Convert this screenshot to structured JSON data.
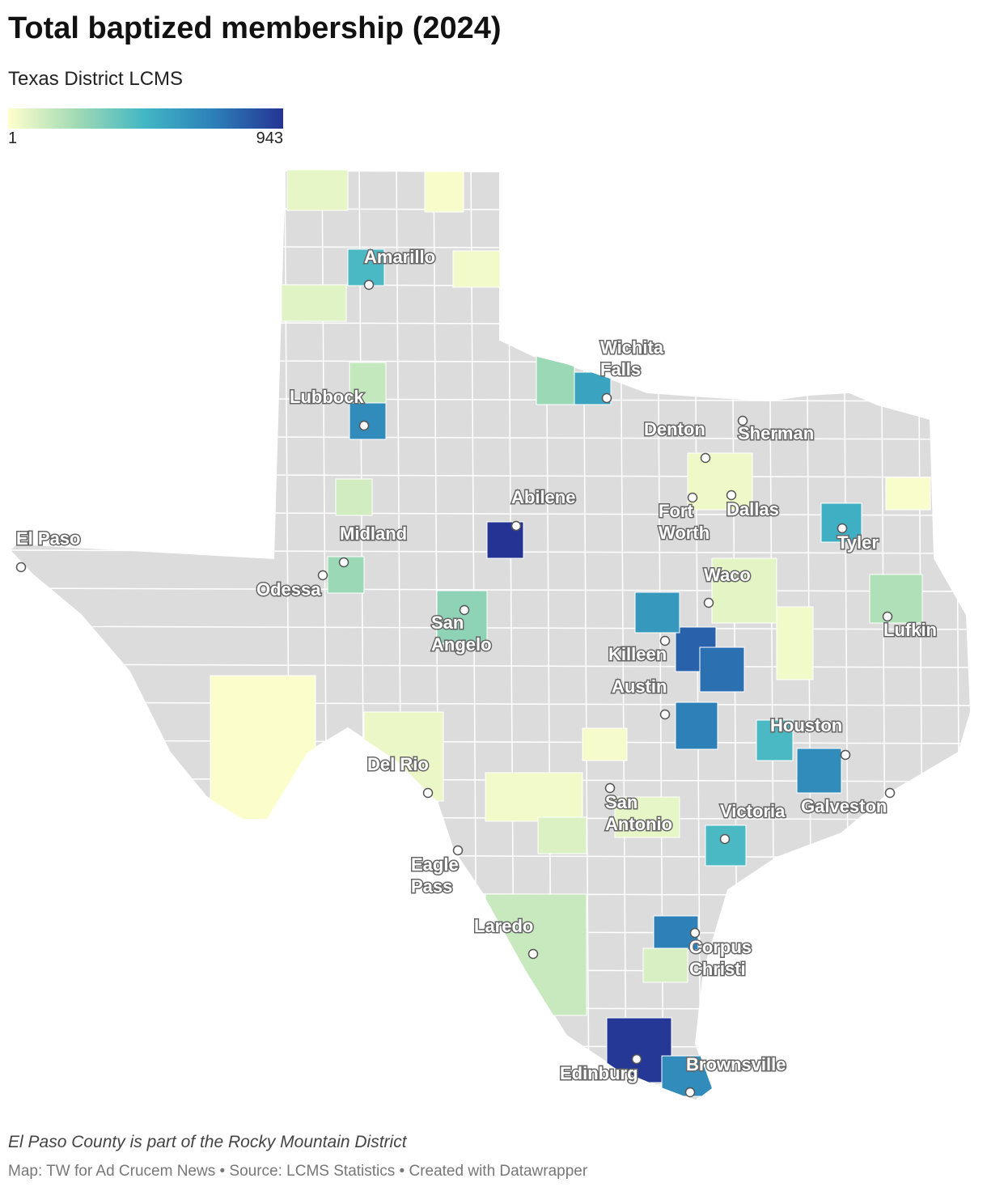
{
  "title": "Total baptized membership (2024)",
  "subtitle": "Texas District LCMS",
  "legend": {
    "min": 1,
    "max": 943,
    "colors": [
      "#ffffcc",
      "#a1dab4",
      "#41b6c4",
      "#2c7fb8",
      "#253494"
    ]
  },
  "counties": [
    {
      "value": 450
    },
    {
      "value": 650
    },
    {
      "value": 943
    },
    {
      "value": 550
    },
    {
      "value": 930
    },
    {
      "value": 650
    },
    {
      "value": 700
    },
    {
      "value": 800
    },
    {
      "value": 750
    },
    {
      "value": 700
    },
    {
      "value": 600
    },
    {
      "value": 450
    },
    {
      "value": 500
    },
    {
      "value": 650
    },
    {
      "value": 450
    },
    {
      "value": 280
    },
    {
      "value": 250
    },
    {
      "value": 250
    },
    {
      "value": 40
    },
    {
      "value": 60
    },
    {
      "value": 20
    },
    {
      "value": 80
    },
    {
      "value": 30
    },
    {
      "value": 150
    },
    {
      "value": 120
    },
    {
      "value": 10
    },
    {
      "value": 50
    },
    {
      "value": 30
    },
    {
      "value": 90
    },
    {
      "value": 140
    },
    {
      "value": 60
    },
    {
      "value": 25
    },
    {
      "value": 70
    },
    {
      "value": 35
    },
    {
      "value": 15
    },
    {
      "value": 200
    },
    {
      "value": 100
    }
  ],
  "cities": [
    {
      "label": [
        "Amarillo"
      ]
    },
    {
      "label": [
        "Wichita",
        "Falls"
      ]
    },
    {
      "label": [
        "Lubbock"
      ]
    },
    {
      "label": [
        "Denton"
      ]
    },
    {
      "label": [
        "Sherman"
      ]
    },
    {
      "label": [
        "Abilene"
      ]
    },
    {
      "label": [
        "Fort",
        "Worth"
      ]
    },
    {
      "label": [
        "Dallas"
      ]
    },
    {
      "label": [
        "El Paso"
      ]
    },
    {
      "label": [
        "Midland"
      ]
    },
    {
      "label": [
        "Tyler"
      ]
    },
    {
      "label": [
        "Odessa"
      ]
    },
    {
      "label": [
        "Waco"
      ]
    },
    {
      "label": [
        "San",
        "Angelo"
      ]
    },
    {
      "label": [
        "Lufkin"
      ]
    },
    {
      "label": [
        "Killeen"
      ]
    },
    {
      "label": [
        "Austin"
      ]
    },
    {
      "label": [
        "Houston"
      ]
    },
    {
      "label": [
        "Del Rio"
      ]
    },
    {
      "label": [
        "San",
        "Antonio"
      ]
    },
    {
      "label": [
        "Victoria"
      ]
    },
    {
      "label": [
        "Galveston"
      ]
    },
    {
      "label": [
        "Eagle",
        "Pass"
      ]
    },
    {
      "label": [
        "Laredo"
      ]
    },
    {
      "label": [
        "Corpus",
        "Christi"
      ]
    },
    {
      "label": [
        "Edinburg"
      ]
    },
    {
      "label": [
        "Brownsville"
      ]
    }
  ],
  "note": "El Paso County is part of the Rocky Mountain District",
  "footer": "Map: TW for Ad Crucem News • Source: LCMS Statistics • Created with Datawrapper"
}
